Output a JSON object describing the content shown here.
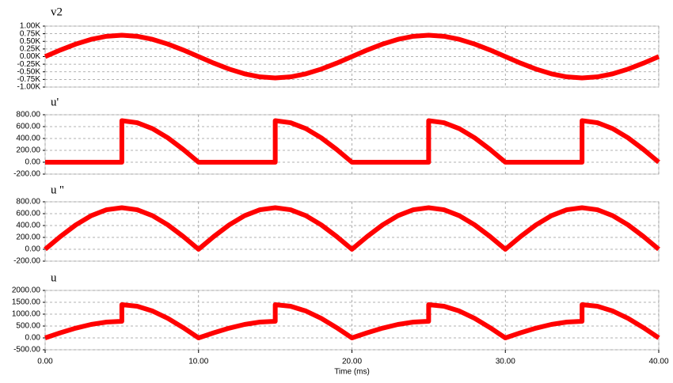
{
  "chart_data": [
    {
      "type": "line",
      "title": "v2",
      "color": "#ff0000",
      "x": [
        0,
        1,
        2,
        3,
        4,
        5,
        6,
        7,
        8,
        9,
        10,
        11,
        12,
        13,
        14,
        15,
        16,
        17,
        18,
        19,
        20,
        21,
        22,
        23,
        24,
        25,
        26,
        27,
        28,
        29,
        30,
        31,
        32,
        33,
        34,
        35,
        36,
        37,
        38,
        39,
        40
      ],
      "values": [
        0,
        216,
        411,
        566,
        666,
        700,
        666,
        566,
        411,
        216,
        0,
        -216,
        -411,
        -566,
        -666,
        -700,
        -666,
        -566,
        -411,
        -216,
        0,
        216,
        411,
        566,
        666,
        700,
        666,
        566,
        411,
        216,
        0,
        -216,
        -411,
        -566,
        -666,
        -700,
        -666,
        -566,
        -411,
        -216,
        0
      ],
      "xlim": [
        0,
        40
      ],
      "xticks": [
        0,
        10,
        20,
        30,
        40
      ],
      "ylim": [
        -1000,
        1000
      ],
      "yticks": [
        {
          "value": 1000,
          "label": "1.00K"
        },
        {
          "value": 750,
          "label": "0.75K"
        },
        {
          "value": 500,
          "label": "0.50K"
        },
        {
          "value": 250,
          "label": "0.25K"
        },
        {
          "value": 0,
          "label": "0.00K"
        },
        {
          "value": -250,
          "label": "-0.25K"
        },
        {
          "value": -500,
          "label": "-0.50K"
        },
        {
          "value": -750,
          "label": "-0.75K"
        },
        {
          "value": -1000,
          "label": "-1.00K"
        }
      ],
      "grid": true
    },
    {
      "type": "line",
      "title": "u'",
      "color": "#ff0000",
      "x": [
        0,
        1,
        2,
        3,
        4,
        5,
        5,
        6,
        7,
        8,
        9,
        10,
        11,
        12,
        13,
        14,
        15,
        15,
        16,
        17,
        18,
        19,
        20,
        21,
        22,
        23,
        24,
        25,
        25,
        26,
        27,
        28,
        29,
        30,
        31,
        32,
        33,
        34,
        35,
        35,
        36,
        37,
        38,
        39,
        40
      ],
      "values": [
        0,
        0,
        0,
        0,
        0,
        0,
        700,
        666,
        566,
        411,
        216,
        0,
        0,
        0,
        0,
        0,
        0,
        700,
        666,
        566,
        411,
        216,
        0,
        0,
        0,
        0,
        0,
        0,
        700,
        666,
        566,
        411,
        216,
        0,
        0,
        0,
        0,
        0,
        0,
        700,
        666,
        566,
        411,
        216,
        0
      ],
      "xlim": [
        0,
        40
      ],
      "xticks": [
        0,
        10,
        20,
        30,
        40
      ],
      "ylim": [
        -200,
        800
      ],
      "yticks": [
        {
          "value": 800,
          "label": "800.00"
        },
        {
          "value": 600,
          "label": "600.00"
        },
        {
          "value": 400,
          "label": "400.00"
        },
        {
          "value": 200,
          "label": "200.00"
        },
        {
          "value": 0,
          "label": "0.00"
        },
        {
          "value": -200,
          "label": "-200.00"
        }
      ],
      "grid": true
    },
    {
      "type": "line",
      "title": "u ''",
      "color": "#ff0000",
      "x": [
        0,
        1,
        2,
        3,
        4,
        5,
        6,
        7,
        8,
        9,
        10,
        11,
        12,
        13,
        14,
        15,
        16,
        17,
        18,
        19,
        20,
        21,
        22,
        23,
        24,
        25,
        26,
        27,
        28,
        29,
        30,
        31,
        32,
        33,
        34,
        35,
        36,
        37,
        38,
        39,
        40
      ],
      "values": [
        0,
        216,
        411,
        566,
        666,
        700,
        666,
        566,
        411,
        216,
        0,
        216,
        411,
        566,
        666,
        700,
        666,
        566,
        411,
        216,
        0,
        216,
        411,
        566,
        666,
        700,
        666,
        566,
        411,
        216,
        0,
        216,
        411,
        566,
        666,
        700,
        666,
        566,
        411,
        216,
        0
      ],
      "xlim": [
        0,
        40
      ],
      "xticks": [
        0,
        10,
        20,
        30,
        40
      ],
      "ylim": [
        -200,
        800
      ],
      "yticks": [
        {
          "value": 800,
          "label": "800.00"
        },
        {
          "value": 600,
          "label": "600.00"
        },
        {
          "value": 400,
          "label": "400.00"
        },
        {
          "value": 200,
          "label": "200.00"
        },
        {
          "value": 0,
          "label": "0.00"
        },
        {
          "value": -200,
          "label": "-200.00"
        }
      ],
      "grid": true
    },
    {
      "type": "line",
      "title": "u",
      "color": "#ff0000",
      "xlabel": "Time (ms)",
      "x": [
        0,
        1,
        2,
        3,
        4,
        5,
        5,
        6,
        7,
        8,
        9,
        10,
        11,
        12,
        13,
        14,
        15,
        15,
        16,
        17,
        18,
        19,
        20,
        21,
        22,
        23,
        24,
        25,
        25,
        26,
        27,
        28,
        29,
        30,
        31,
        32,
        33,
        34,
        35,
        35,
        36,
        37,
        38,
        39,
        40
      ],
      "values": [
        0,
        216,
        411,
        566,
        666,
        700,
        1400,
        1332,
        1132,
        822,
        432,
        0,
        216,
        411,
        566,
        666,
        700,
        1400,
        1332,
        1132,
        822,
        432,
        0,
        216,
        411,
        566,
        666,
        700,
        1400,
        1332,
        1132,
        822,
        432,
        0,
        216,
        411,
        566,
        666,
        700,
        1400,
        1332,
        1132,
        822,
        432,
        0
      ],
      "xlim": [
        0,
        40
      ],
      "xticks": [
        {
          "value": 0,
          "label": "0.00"
        },
        {
          "value": 10,
          "label": "10.00"
        },
        {
          "value": 20,
          "label": "20.00"
        },
        {
          "value": 30,
          "label": "30.00"
        },
        {
          "value": 40,
          "label": "40.00"
        }
      ],
      "ylim": [
        -500,
        2000
      ],
      "yticks": [
        {
          "value": 2000,
          "label": "2000.00"
        },
        {
          "value": 1500,
          "label": "1500.00"
        },
        {
          "value": 1000,
          "label": "1000.00"
        },
        {
          "value": 500,
          "label": "500.00"
        },
        {
          "value": 0,
          "label": "0.00"
        },
        {
          "value": -500,
          "label": "-500.00"
        }
      ],
      "grid": true
    }
  ]
}
